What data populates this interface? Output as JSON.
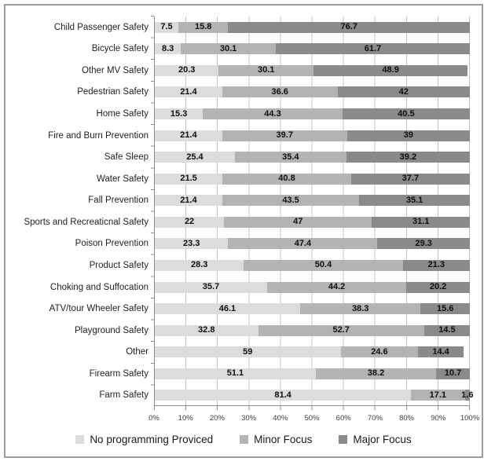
{
  "chart_data": {
    "type": "bar",
    "orientation": "horizontal",
    "stacked": true,
    "title": "",
    "xlabel": "",
    "ylabel": "",
    "xlim": [
      0,
      100
    ],
    "grid": "vertical gridlines every 10%",
    "legend_position": "bottom",
    "value_labels": "centered, bold, inside segments",
    "x_ticks": [
      "0%",
      "10%",
      "20%",
      "30%",
      "40%",
      "50%",
      "60%",
      "70%",
      "80%",
      "90%",
      "100%"
    ],
    "categories": [
      "Child Passenger Safety",
      "Bicycle Safety",
      "Other MV Safety",
      "Pedestrian Safety",
      "Home Safety",
      "Fire and Burn Prevention",
      "Safe Sleep",
      "Water Safety",
      "Fall Prevention",
      "Sports and Recreaticnal Safety",
      "Poison Prevention",
      "Product Safety",
      "Choking and Suffocation",
      "ATV/tour Wheeler Safety",
      "Playground Safety",
      "Other",
      "Firearm Safety",
      "Farm Safety"
    ],
    "series": [
      {
        "key": "no-programming",
        "name": "No programming Proviced",
        "color": "#dcdcdc",
        "values": [
          7.5,
          8.3,
          20.3,
          21.4,
          15.3,
          21.4,
          25.4,
          21.5,
          21.4,
          22,
          23.3,
          28.3,
          35.7,
          46.1,
          32.8,
          59,
          51.1,
          81.4
        ]
      },
      {
        "key": "minor-focus",
        "name": "Minor Focus",
        "color": "#b3b3b3",
        "values": [
          15.8,
          30.1,
          30.1,
          36.6,
          44.3,
          39.7,
          35.4,
          40.8,
          43.5,
          47,
          47.4,
          50.4,
          44.2,
          38.3,
          52.7,
          24.6,
          38.2,
          17.1
        ]
      },
      {
        "key": "major-focus",
        "name": "Major Focus",
        "color": "#8a8a8a",
        "values": [
          76.7,
          61.7,
          48.9,
          42,
          40.5,
          39,
          39.2,
          37.7,
          35.1,
          31.1,
          29.3,
          21.3,
          20.2,
          15.6,
          14.5,
          14.4,
          10.7,
          1.6
        ]
      }
    ]
  }
}
